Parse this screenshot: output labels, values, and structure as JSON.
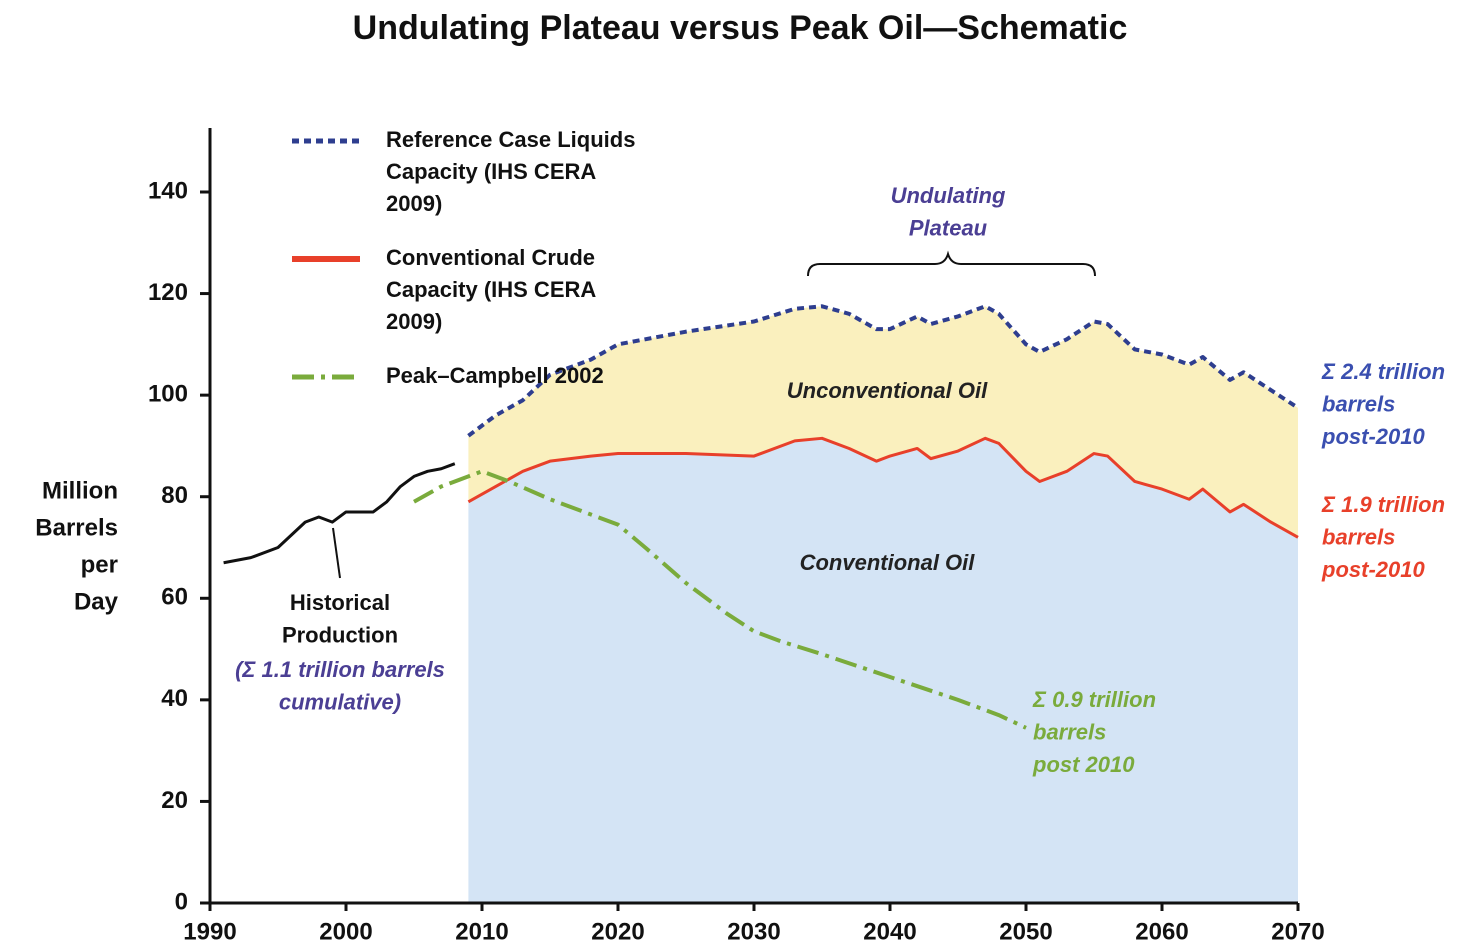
{
  "chart_data": {
    "type": "line",
    "title": "Undulating Plateau versus Peak Oil—Schematic",
    "y_label": [
      "Million",
      "Barrels",
      "per",
      "Day"
    ],
    "xlim": [
      1990,
      2070
    ],
    "xticks": [
      1990,
      2000,
      2010,
      2020,
      2030,
      2040,
      2050,
      2060,
      2070
    ],
    "ylim": [
      0,
      140
    ],
    "yticks": [
      0,
      20,
      40,
      60,
      80,
      100,
      120,
      140
    ],
    "legend": "upper left",
    "series": [
      {
        "name": "Reference Case Liquids Capacity (IHS CERA 2009)",
        "color": "#2e3e8f",
        "style": "dotted",
        "fill": "#faf0be",
        "x": [
          2009,
          2011,
          2013,
          2015,
          2018,
          2020,
          2025,
          2030,
          2033,
          2035,
          2037,
          2039,
          2040,
          2042,
          2043,
          2045,
          2047,
          2048,
          2050,
          2051,
          2053,
          2055,
          2056,
          2058,
          2060,
          2062,
          2063,
          2065,
          2066,
          2068,
          2070
        ],
        "values": [
          92,
          96,
          99,
          104,
          107,
          110,
          112.5,
          114.5,
          117,
          117.5,
          116,
          113,
          113,
          115.5,
          114,
          115.5,
          117.5,
          116,
          110,
          108.5,
          111,
          114.5,
          114,
          109,
          108,
          106,
          107.5,
          103,
          104.5,
          101,
          97.5
        ]
      },
      {
        "name": "Conventional Crude Capacity (IHS CERA 2009)",
        "color": "#e8402a",
        "style": "solid",
        "fill": "#d4e4f5",
        "x": [
          2009,
          2011,
          2013,
          2015,
          2018,
          2020,
          2025,
          2030,
          2033,
          2035,
          2037,
          2039,
          2040,
          2042,
          2043,
          2045,
          2047,
          2048,
          2050,
          2051,
          2053,
          2055,
          2056,
          2058,
          2060,
          2062,
          2063,
          2065,
          2066,
          2068,
          2070
        ],
        "values": [
          79,
          82,
          85,
          87,
          88,
          88.5,
          88.5,
          88,
          91,
          91.5,
          89.5,
          87,
          88,
          89.5,
          87.5,
          89,
          91.5,
          90.5,
          85,
          83,
          85,
          88.5,
          88,
          83,
          81.5,
          79.5,
          81.5,
          77,
          78.5,
          75,
          72
        ]
      },
      {
        "name": "Peak–Campbell 2002",
        "color": "#7aab3c",
        "style": "dashdot",
        "x": [
          2005,
          2007,
          2009,
          2010,
          2012,
          2015,
          2020,
          2022,
          2025,
          2028,
          2030,
          2032,
          2035,
          2040,
          2045,
          2048,
          2050
        ],
        "values": [
          79,
          82,
          84,
          85,
          83,
          79.5,
          74.5,
          70,
          63,
          57,
          53.5,
          51.5,
          49,
          44.5,
          40,
          37,
          34.5
        ]
      },
      {
        "color": "#111111",
        "style": "solid",
        "x": [
          1991,
          1993,
          1995,
          1997,
          1998,
          1999,
          2000,
          2002,
          2003,
          2004,
          2005,
          2006,
          2007,
          2008
        ],
        "values": [
          67,
          68,
          70,
          75,
          76,
          75,
          77,
          77,
          79,
          82,
          84,
          85,
          85.5,
          86.5
        ]
      }
    ],
    "annotations": [
      {
        "lines": [
          "Undulating",
          "Plateau"
        ],
        "color": "#4b3f94"
      },
      {
        "lines": [
          "Unconventional Oil"
        ],
        "color": "#222222"
      },
      {
        "lines": [
          "Conventional Oil"
        ],
        "color": "#222222"
      },
      {
        "lines": [
          "Historical",
          "Production"
        ],
        "color": "#111111"
      },
      {
        "lines": [
          "(Σ 1.1 trillion barrels",
          "cumulative)"
        ],
        "color": "#4b3f94"
      },
      {
        "lines": [
          "Σ 2.4 trillion",
          "barrels",
          "post-2010"
        ],
        "color": "#3a4fb0"
      },
      {
        "lines": [
          "Σ 1.9 trillion",
          "barrels",
          "post-2010"
        ],
        "color": "#e8402a"
      },
      {
        "lines": [
          "Σ 0.9 trillion",
          "barrels",
          "post 2010"
        ],
        "color": "#7aab3c"
      }
    ]
  }
}
